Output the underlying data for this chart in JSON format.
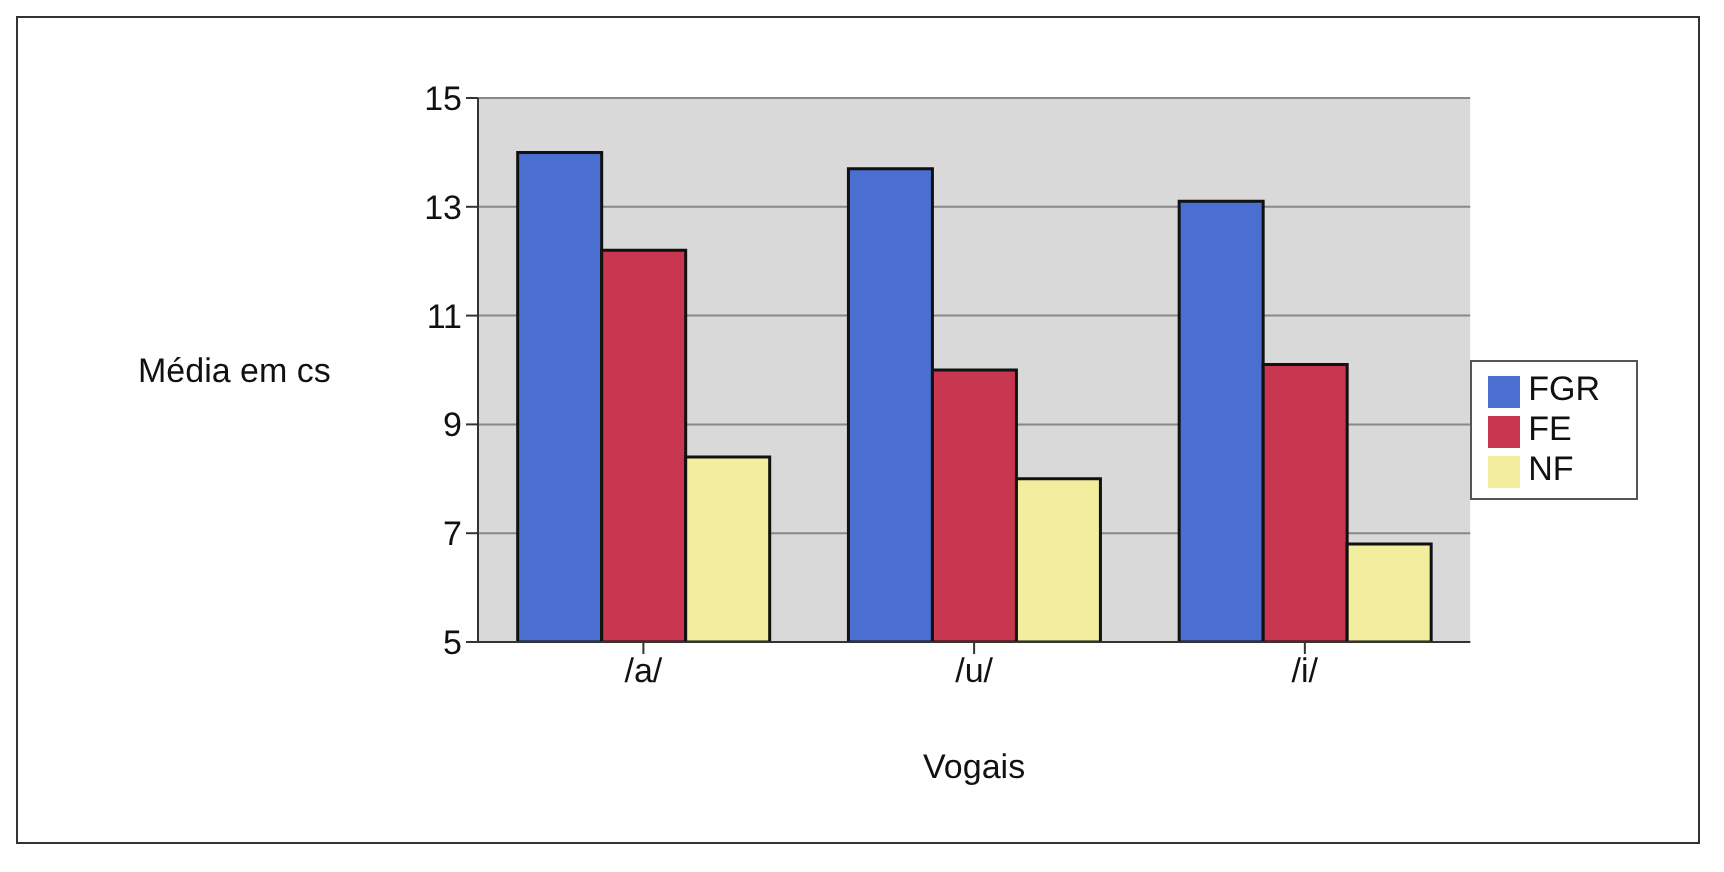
{
  "chart_data": {
    "type": "bar",
    "xlabel": "Vogais",
    "ylabel": "Média em cs",
    "categories": [
      "/a/",
      "/u/",
      "/i/"
    ],
    "series": [
      {
        "name": "FGR",
        "color": "#4a6fd0",
        "values": [
          14,
          13.7,
          13.1
        ]
      },
      {
        "name": "FE",
        "color": "#c8374f",
        "values": [
          12.2,
          10,
          10.1
        ]
      },
      {
        "name": "NF",
        "color": "#f2ee9e",
        "values": [
          8.4,
          8,
          6.8
        ]
      }
    ],
    "ylim": [
      5,
      15
    ],
    "yticks": [
      5,
      7,
      9,
      11,
      13,
      15
    ],
    "grid": "y",
    "legend": "right"
  }
}
